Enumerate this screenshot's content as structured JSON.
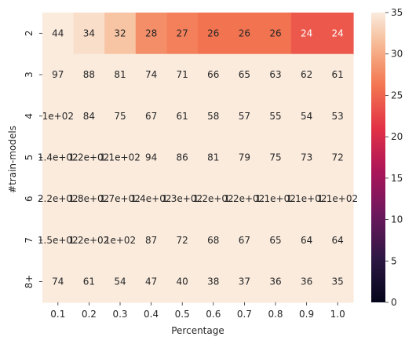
{
  "chart_data": {
    "type": "heatmap",
    "title": "",
    "xlabel": "Percentage",
    "ylabel": "#train-models",
    "x_categories": [
      "0.1",
      "0.2",
      "0.3",
      "0.4",
      "0.5",
      "0.6",
      "0.7",
      "0.8",
      "0.9",
      "1.0"
    ],
    "y_categories": [
      "2",
      "3",
      "4",
      "5",
      "6",
      "7",
      "8+"
    ],
    "values": [
      [
        44,
        34,
        32,
        28,
        27,
        26,
        26,
        26,
        24,
        24
      ],
      [
        97,
        88,
        81,
        74,
        71,
        66,
        65,
        63,
        62,
        61
      ],
      [
        100,
        84,
        75,
        67,
        61,
        58,
        57,
        55,
        54,
        53
      ],
      [
        140,
        120,
        110,
        94,
        86,
        81,
        79,
        75,
        73,
        72
      ],
      [
        220,
        180,
        170,
        140,
        130,
        120,
        120,
        110,
        110,
        110
      ],
      [
        150,
        120,
        100,
        87,
        72,
        68,
        67,
        65,
        64,
        64
      ],
      [
        74,
        61,
        54,
        47,
        40,
        38,
        37,
        36,
        36,
        35
      ]
    ],
    "cell_labels": [
      [
        "44",
        "34",
        "32",
        "28",
        "27",
        "26",
        "26",
        "26",
        "24",
        "24"
      ],
      [
        "97",
        "88",
        "81",
        "74",
        "71",
        "66",
        "65",
        "63",
        "62",
        "61"
      ],
      [
        "1e+02",
        "84",
        "75",
        "67",
        "61",
        "58",
        "57",
        "55",
        "54",
        "53"
      ],
      [
        "1.4e+02",
        "1.2e+02",
        "1.1e+02",
        "94",
        "86",
        "81",
        "79",
        "75",
        "73",
        "72"
      ],
      [
        "2.2e+02",
        "1.8e+02",
        "1.7e+02",
        "1.4e+02",
        "1.3e+02",
        "1.2e+02",
        "1.2e+02",
        "1.1e+02",
        "1.1e+02",
        "1.1e+02"
      ],
      [
        "1.5e+02",
        "1.2e+02",
        "1e+02",
        "87",
        "72",
        "68",
        "67",
        "65",
        "64",
        "64"
      ],
      [
        "74",
        "61",
        "54",
        "47",
        "40",
        "38",
        "37",
        "36",
        "36",
        "35"
      ]
    ],
    "colorbar": {
      "colormap": "rocket",
      "vmin": 0,
      "vmax": 35,
      "ticks": [
        "0",
        "5",
        "10",
        "15",
        "20",
        "25",
        "30",
        "35"
      ]
    }
  }
}
